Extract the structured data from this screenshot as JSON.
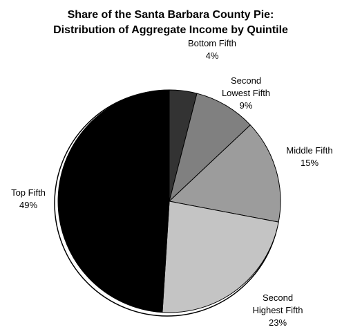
{
  "chart_data": {
    "type": "pie",
    "title": "Share of the Santa Barbara County Pie:",
    "subtitle": "Distribution of Aggregate Income by Quintile",
    "slices": [
      {
        "name": "Bottom Fifth",
        "label_lines": [
          "Bottom Fifth"
        ],
        "value": 4,
        "display_value": "4%",
        "color": "#333333"
      },
      {
        "name": "Second Lowest Fifth",
        "label_lines": [
          "Second",
          "Lowest Fifth"
        ],
        "value": 9,
        "display_value": "9%",
        "color": "#808080"
      },
      {
        "name": "Middle Fifth",
        "label_lines": [
          "Middle Fifth"
        ],
        "value": 15,
        "display_value": "15%",
        "color": "#9c9c9c"
      },
      {
        "name": "Second Highest Fifth",
        "label_lines": [
          "Second",
          "Highest Fifth"
        ],
        "value": 23,
        "display_value": "23%",
        "color": "#c4c4c4"
      },
      {
        "name": "Top Fifth",
        "label_lines": [
          "Top Fifth"
        ],
        "value": 49,
        "display_value": "49%",
        "color": "#000000"
      }
    ],
    "legend": "none",
    "start": "12 o'clock, clockwise"
  }
}
